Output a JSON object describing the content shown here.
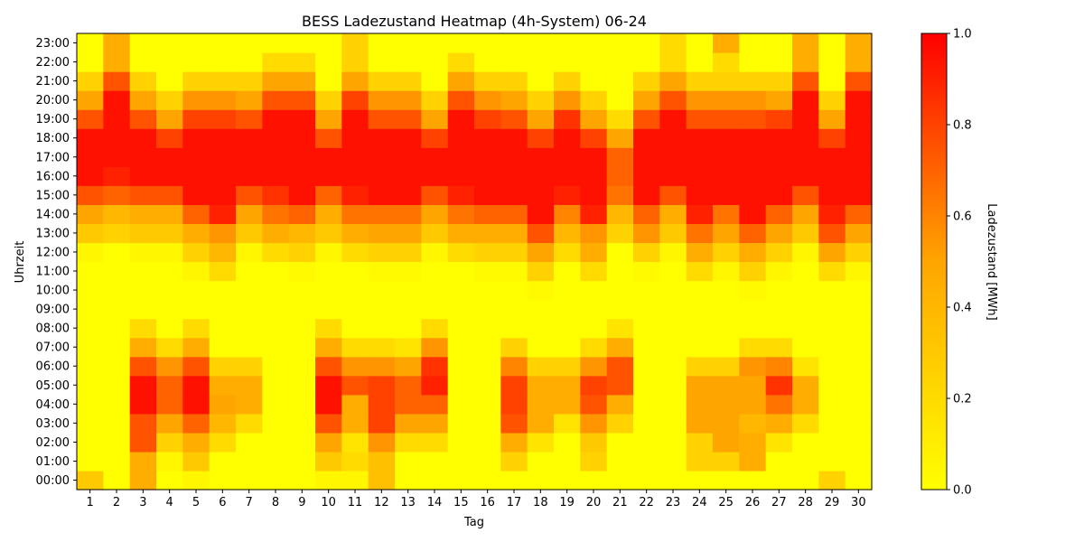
{
  "chart_data": {
    "type": "heatmap",
    "title": "BESS Ladezustand Heatmap (4h-System) 06-24",
    "xlabel": "Tag",
    "ylabel": "Uhrzeit",
    "colorbar_label": "Ladezustand [MWh]",
    "colorbar_ticks": [
      "0.0",
      "0.2",
      "0.4",
      "0.6",
      "0.8",
      "1.0"
    ],
    "value_range": [
      0,
      1
    ],
    "colormap": [
      "#ffff00",
      "#ffa500",
      "#ff0000"
    ],
    "x": [
      "1",
      "2",
      "3",
      "4",
      "5",
      "6",
      "7",
      "8",
      "9",
      "10",
      "11",
      "12",
      "13",
      "14",
      "15",
      "16",
      "17",
      "18",
      "19",
      "20",
      "21",
      "22",
      "23",
      "24",
      "25",
      "26",
      "27",
      "28",
      "29",
      "30"
    ],
    "y": [
      "00:00",
      "01:00",
      "02:00",
      "03:00",
      "04:00",
      "05:00",
      "06:00",
      "07:00",
      "08:00",
      "09:00",
      "10:00",
      "11:00",
      "12:00",
      "13:00",
      "14:00",
      "15:00",
      "16:00",
      "17:00",
      "18:00",
      "19:00",
      "20:00",
      "21:00",
      "22:00",
      "23:00"
    ],
    "values": [
      [
        0.3,
        0,
        0.45,
        0,
        0.05,
        0,
        0,
        0,
        0,
        0.05,
        0.05,
        0.35,
        0,
        0,
        0,
        0,
        0,
        0,
        0,
        0,
        0,
        0,
        0,
        0,
        0,
        0,
        0,
        0,
        0.25,
        0
      ],
      [
        0,
        0,
        0.45,
        0.05,
        0.3,
        0,
        0,
        0,
        0,
        0.3,
        0.2,
        0.35,
        0,
        0,
        0,
        0,
        0.25,
        0,
        0,
        0.25,
        0,
        0,
        0,
        0.25,
        0.25,
        0.45,
        0,
        0,
        0,
        0
      ],
      [
        0,
        0,
        0.75,
        0.25,
        0.45,
        0.2,
        0,
        0,
        0,
        0.5,
        0.15,
        0.55,
        0.2,
        0.2,
        0,
        0,
        0.45,
        0.15,
        0,
        0.3,
        0,
        0,
        0,
        0.25,
        0.5,
        0.45,
        0.15,
        0,
        0,
        0
      ],
      [
        0,
        0,
        0.75,
        0.5,
        0.7,
        0.4,
        0.2,
        0,
        0,
        0.75,
        0.45,
        0.8,
        0.5,
        0.5,
        0,
        0,
        0.75,
        0.45,
        0.15,
        0.55,
        0.25,
        0,
        0,
        0.5,
        0.5,
        0.4,
        0.45,
        0.2,
        0,
        0
      ],
      [
        0,
        0,
        0.95,
        0.7,
        0.95,
        0.5,
        0.45,
        0,
        0,
        0.95,
        0.45,
        0.8,
        0.7,
        0.7,
        0,
        0,
        0.8,
        0.45,
        0.45,
        0.75,
        0.45,
        0,
        0,
        0.5,
        0.5,
        0.5,
        0.65,
        0.45,
        0,
        0
      ],
      [
        0,
        0,
        0.95,
        0.7,
        0.95,
        0.45,
        0.45,
        0,
        0,
        0.95,
        0.75,
        0.8,
        0.7,
        0.9,
        0,
        0,
        0.8,
        0.45,
        0.45,
        0.8,
        0.75,
        0,
        0,
        0.5,
        0.5,
        0.5,
        0.85,
        0.45,
        0,
        0
      ],
      [
        0,
        0,
        0.75,
        0.55,
        0.75,
        0.25,
        0.25,
        0,
        0,
        0.75,
        0.55,
        0.55,
        0.5,
        0.85,
        0,
        0,
        0.6,
        0.25,
        0.25,
        0.55,
        0.75,
        0,
        0,
        0.25,
        0.25,
        0.55,
        0.6,
        0.15,
        0,
        0
      ],
      [
        0,
        0,
        0.45,
        0.2,
        0.45,
        0,
        0,
        0,
        0,
        0.45,
        0.2,
        0.2,
        0.15,
        0.55,
        0,
        0,
        0.25,
        0,
        0,
        0.2,
        0.45,
        0,
        0,
        0,
        0,
        0.2,
        0.2,
        0,
        0,
        0
      ],
      [
        0,
        0,
        0.2,
        0,
        0.2,
        0,
        0,
        0,
        0,
        0.2,
        0,
        0,
        0,
        0.2,
        0,
        0,
        0,
        0,
        0,
        0,
        0.15,
        0,
        0,
        0,
        0,
        0,
        0,
        0,
        0,
        0
      ],
      [
        0,
        0,
        0,
        0,
        0,
        0,
        0,
        0,
        0,
        0,
        0,
        0,
        0,
        0,
        0,
        0,
        0,
        0,
        0,
        0,
        0,
        0,
        0,
        0,
        0,
        0,
        0,
        0,
        0,
        0
      ],
      [
        0,
        0,
        0,
        0,
        0,
        0,
        0,
        0,
        0,
        0,
        0,
        0,
        0,
        0,
        0,
        0,
        0,
        0.03,
        0,
        0,
        0,
        0,
        0,
        0,
        0,
        0.03,
        0,
        0,
        0,
        0
      ],
      [
        0,
        0,
        0,
        0,
        0.05,
        0.2,
        0,
        0,
        0.03,
        0,
        0,
        0.03,
        0.03,
        0,
        0,
        0.03,
        0.03,
        0.25,
        0,
        0.2,
        0,
        0.03,
        0,
        0.2,
        0.05,
        0.25,
        0.05,
        0,
        0.2,
        0.05
      ],
      [
        0.05,
        0,
        0.05,
        0.05,
        0.25,
        0.4,
        0.05,
        0.2,
        0.25,
        0.05,
        0.2,
        0.25,
        0.25,
        0.05,
        0.2,
        0.25,
        0.25,
        0.5,
        0.2,
        0.45,
        0,
        0.25,
        0.05,
        0.45,
        0.25,
        0.45,
        0.25,
        0.05,
        0.5,
        0.25
      ],
      [
        0.3,
        0.25,
        0.3,
        0.3,
        0.45,
        0.55,
        0.3,
        0.45,
        0.4,
        0.3,
        0.45,
        0.5,
        0.5,
        0.3,
        0.45,
        0.45,
        0.45,
        0.75,
        0.4,
        0.55,
        0.25,
        0.55,
        0.3,
        0.65,
        0.5,
        0.7,
        0.5,
        0.3,
        0.75,
        0.5
      ],
      [
        0.5,
        0.4,
        0.45,
        0.45,
        0.7,
        0.9,
        0.5,
        0.65,
        0.7,
        0.45,
        0.65,
        0.65,
        0.65,
        0.5,
        0.65,
        0.7,
        0.7,
        0.95,
        0.6,
        0.9,
        0.4,
        0.7,
        0.45,
        0.9,
        0.65,
        0.95,
        0.7,
        0.5,
        0.9,
        0.7
      ],
      [
        0.75,
        0.7,
        0.75,
        0.75,
        0.95,
        0.95,
        0.75,
        0.85,
        0.95,
        0.7,
        0.9,
        0.95,
        0.95,
        0.75,
        0.9,
        0.95,
        0.95,
        0.95,
        0.9,
        0.95,
        0.65,
        0.95,
        0.75,
        0.95,
        0.95,
        0.95,
        0.95,
        0.75,
        0.95,
        0.95
      ],
      [
        0.95,
        0.9,
        0.95,
        0.95,
        0.95,
        0.95,
        0.95,
        0.95,
        0.95,
        0.95,
        0.95,
        0.95,
        0.95,
        0.95,
        0.95,
        0.95,
        0.95,
        0.95,
        0.95,
        0.95,
        0.7,
        0.95,
        0.95,
        0.95,
        0.95,
        0.95,
        0.95,
        0.95,
        0.95,
        0.95
      ],
      [
        0.95,
        0.95,
        0.95,
        0.95,
        0.95,
        0.95,
        0.95,
        0.95,
        0.95,
        0.95,
        0.95,
        0.95,
        0.95,
        0.95,
        0.95,
        0.95,
        0.95,
        0.95,
        0.95,
        0.95,
        0.7,
        0.95,
        0.95,
        0.95,
        0.95,
        0.95,
        0.95,
        0.95,
        0.95,
        0.95
      ],
      [
        0.95,
        0.95,
        0.95,
        0.8,
        0.95,
        0.95,
        0.95,
        0.95,
        0.95,
        0.75,
        0.95,
        0.95,
        0.95,
        0.8,
        0.95,
        0.95,
        0.95,
        0.8,
        0.95,
        0.8,
        0.5,
        0.95,
        0.95,
        0.95,
        0.95,
        0.95,
        0.95,
        0.95,
        0.8,
        0.95
      ],
      [
        0.75,
        0.95,
        0.75,
        0.5,
        0.8,
        0.8,
        0.75,
        0.95,
        0.95,
        0.5,
        0.95,
        0.75,
        0.75,
        0.5,
        0.95,
        0.8,
        0.75,
        0.5,
        0.85,
        0.5,
        0.2,
        0.75,
        0.95,
        0.75,
        0.75,
        0.75,
        0.8,
        0.95,
        0.5,
        0.95
      ],
      [
        0.5,
        0.95,
        0.5,
        0.25,
        0.55,
        0.55,
        0.5,
        0.75,
        0.75,
        0.25,
        0.8,
        0.55,
        0.55,
        0.25,
        0.75,
        0.55,
        0.5,
        0.25,
        0.55,
        0.25,
        0,
        0.5,
        0.75,
        0.55,
        0.55,
        0.55,
        0.5,
        0.95,
        0.25,
        0.95
      ],
      [
        0.25,
        0.75,
        0.25,
        0,
        0.25,
        0.25,
        0.25,
        0.5,
        0.5,
        0,
        0.5,
        0.25,
        0.25,
        0,
        0.5,
        0.25,
        0.25,
        0,
        0.25,
        0,
        0,
        0.25,
        0.5,
        0.25,
        0.25,
        0.25,
        0.25,
        0.75,
        0,
        0.75
      ],
      [
        0,
        0.45,
        0,
        0,
        0,
        0,
        0,
        0.2,
        0.2,
        0,
        0.25,
        0,
        0,
        0,
        0.2,
        0,
        0,
        0,
        0,
        0,
        0,
        0,
        0.2,
        0,
        0.2,
        0,
        0,
        0.45,
        0,
        0.45
      ],
      [
        0,
        0.45,
        0,
        0,
        0,
        0,
        0,
        0,
        0,
        0,
        0.25,
        0,
        0,
        0,
        0,
        0,
        0,
        0,
        0,
        0,
        0,
        0,
        0.2,
        0,
        0.45,
        0,
        0,
        0.45,
        0,
        0.45
      ]
    ]
  }
}
